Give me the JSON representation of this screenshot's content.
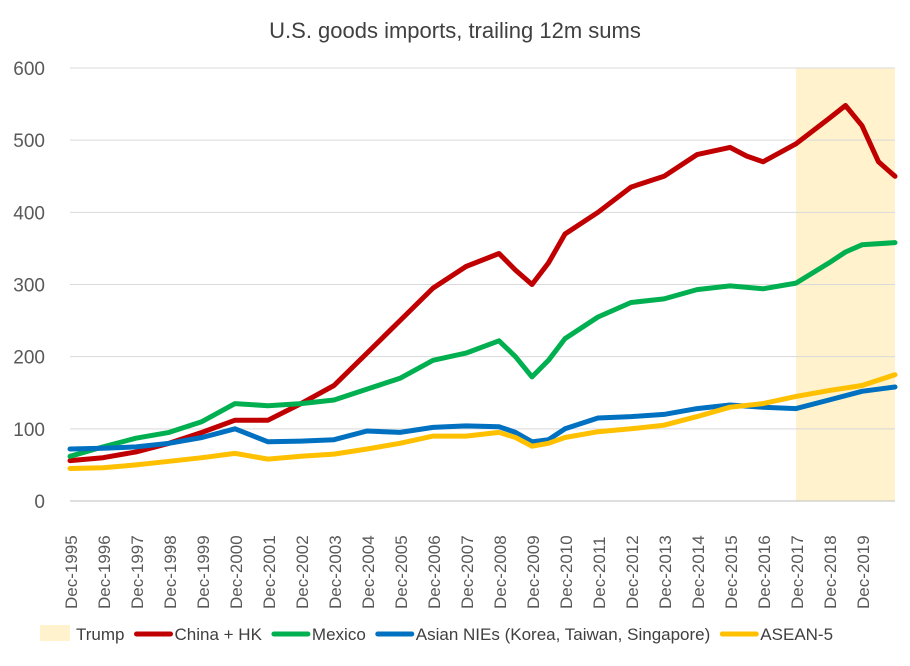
{
  "chart_data": {
    "type": "line",
    "title": "U.S. goods imports, trailing 12m sums",
    "xlabel": "",
    "ylabel": "",
    "ylim": [
      0,
      600
    ],
    "yticks": [
      0,
      100,
      200,
      300,
      400,
      500,
      600
    ],
    "grid": "horizontal",
    "legend_position": "bottom",
    "x_tick_labels": [
      "Dec-1995",
      "Dec-1996",
      "Dec-1997",
      "Dec-1998",
      "Dec-1999",
      "Dec-2000",
      "Dec-2001",
      "Dec-2002",
      "Dec-2003",
      "Dec-2004",
      "Dec-2005",
      "Dec-2006",
      "Dec-2007",
      "Dec-2008",
      "Dec-2009",
      "Dec-2010",
      "Dec-2011",
      "Dec-2012",
      "Dec-2013",
      "Dec-2014",
      "Dec-2015",
      "Dec-2016",
      "Dec-2017",
      "Dec-2018",
      "Dec-2019"
    ],
    "shaded_region": {
      "name": "Trump",
      "start": "Dec-2016",
      "end": "Dec-2019",
      "color": "#FFF2CC"
    },
    "series": [
      {
        "name": "China + HK",
        "color": "#C00000",
        "points": [
          [
            1995,
            56
          ],
          [
            1996,
            60
          ],
          [
            1997,
            68
          ],
          [
            1998,
            80
          ],
          [
            1999,
            95
          ],
          [
            2000,
            112
          ],
          [
            2001,
            112
          ],
          [
            2002,
            135
          ],
          [
            2003,
            160
          ],
          [
            2004,
            205
          ],
          [
            2005,
            250
          ],
          [
            2006,
            295
          ],
          [
            2007,
            325
          ],
          [
            2008,
            343
          ],
          [
            2008.5,
            320
          ],
          [
            2009,
            300
          ],
          [
            2009.5,
            330
          ],
          [
            2010,
            370
          ],
          [
            2011,
            400
          ],
          [
            2012,
            435
          ],
          [
            2013,
            450
          ],
          [
            2014,
            480
          ],
          [
            2015,
            490
          ],
          [
            2015.5,
            478
          ],
          [
            2016,
            470
          ],
          [
            2017,
            495
          ],
          [
            2018,
            530
          ],
          [
            2018.5,
            548
          ],
          [
            2019,
            520
          ],
          [
            2019.5,
            470
          ],
          [
            2020,
            450
          ]
        ]
      },
      {
        "name": "Mexico",
        "color": "#00B050",
        "points": [
          [
            1995,
            62
          ],
          [
            1996,
            75
          ],
          [
            1997,
            87
          ],
          [
            1998,
            95
          ],
          [
            1999,
            110
          ],
          [
            2000,
            135
          ],
          [
            2001,
            132
          ],
          [
            2002,
            135
          ],
          [
            2003,
            140
          ],
          [
            2004,
            155
          ],
          [
            2005,
            170
          ],
          [
            2006,
            195
          ],
          [
            2007,
            205
          ],
          [
            2008,
            222
          ],
          [
            2008.5,
            200
          ],
          [
            2009,
            172
          ],
          [
            2009.5,
            195
          ],
          [
            2010,
            225
          ],
          [
            2011,
            255
          ],
          [
            2012,
            275
          ],
          [
            2013,
            280
          ],
          [
            2014,
            293
          ],
          [
            2015,
            298
          ],
          [
            2016,
            294
          ],
          [
            2017,
            302
          ],
          [
            2018,
            330
          ],
          [
            2018.5,
            345
          ],
          [
            2019,
            355
          ],
          [
            2020,
            358
          ]
        ]
      },
      {
        "name": "Asian NIEs (Korea, Taiwan, Singapore)",
        "color": "#0070C0",
        "points": [
          [
            1995,
            72
          ],
          [
            1996,
            73
          ],
          [
            1997,
            75
          ],
          [
            1998,
            80
          ],
          [
            1999,
            88
          ],
          [
            2000,
            100
          ],
          [
            2001,
            82
          ],
          [
            2002,
            83
          ],
          [
            2003,
            85
          ],
          [
            2004,
            97
          ],
          [
            2005,
            95
          ],
          [
            2006,
            102
          ],
          [
            2007,
            104
          ],
          [
            2008,
            103
          ],
          [
            2008.5,
            95
          ],
          [
            2009,
            82
          ],
          [
            2009.5,
            85
          ],
          [
            2010,
            100
          ],
          [
            2011,
            115
          ],
          [
            2012,
            117
          ],
          [
            2013,
            120
          ],
          [
            2014,
            128
          ],
          [
            2015,
            133
          ],
          [
            2016,
            130
          ],
          [
            2017,
            128
          ],
          [
            2018,
            140
          ],
          [
            2019,
            152
          ],
          [
            2020,
            158
          ]
        ]
      },
      {
        "name": "ASEAN-5",
        "color": "#FFC000",
        "points": [
          [
            1995,
            45
          ],
          [
            1996,
            46
          ],
          [
            1997,
            50
          ],
          [
            1998,
            55
          ],
          [
            1999,
            60
          ],
          [
            2000,
            66
          ],
          [
            2001,
            58
          ],
          [
            2002,
            62
          ],
          [
            2003,
            65
          ],
          [
            2004,
            72
          ],
          [
            2005,
            80
          ],
          [
            2006,
            90
          ],
          [
            2007,
            90
          ],
          [
            2008,
            95
          ],
          [
            2008.5,
            88
          ],
          [
            2009,
            76
          ],
          [
            2009.5,
            80
          ],
          [
            2010,
            88
          ],
          [
            2011,
            96
          ],
          [
            2012,
            100
          ],
          [
            2013,
            105
          ],
          [
            2014,
            117
          ],
          [
            2015,
            130
          ],
          [
            2016,
            135
          ],
          [
            2017,
            145
          ],
          [
            2018,
            153
          ],
          [
            2019,
            160
          ],
          [
            2020,
            175
          ]
        ]
      }
    ]
  }
}
